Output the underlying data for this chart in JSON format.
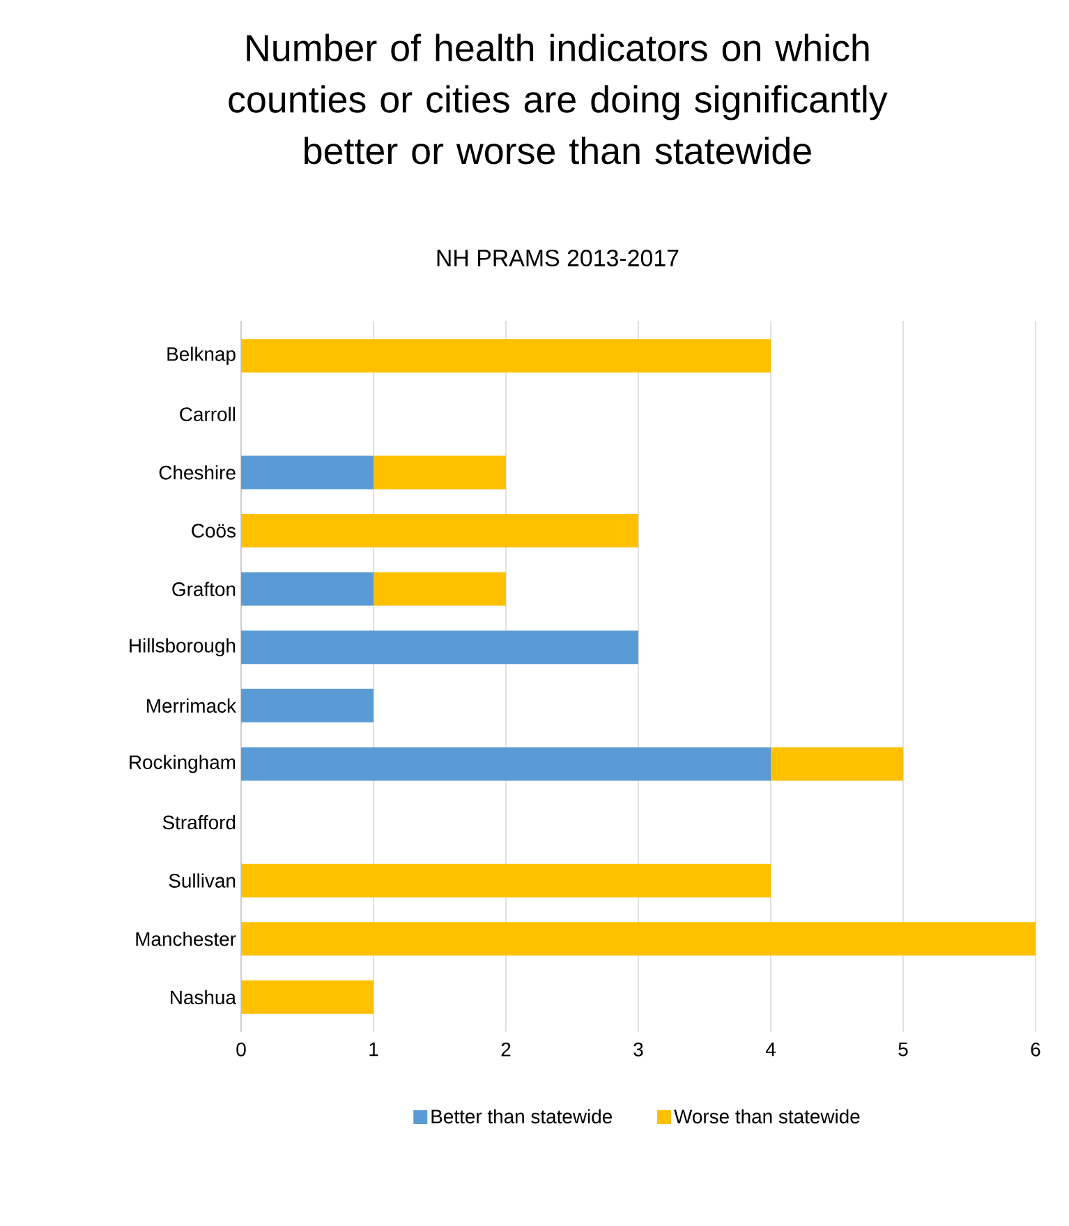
{
  "chart_data": {
    "type": "bar",
    "orientation": "horizontal",
    "stacked": true,
    "title": "Number of health indicators on which counties or cities are doing significantly better or worse than statewide",
    "subtitle": "NH PRAMS 2013-2017",
    "categories": [
      "Belknap",
      "Carroll",
      "Cheshire",
      "Coös",
      "Grafton",
      "Hillsborough",
      "Merrimack",
      "Rockingham",
      "Strafford",
      "Sullivan",
      "Manchester",
      "Nashua"
    ],
    "series": [
      {
        "name": "Better than statewide",
        "color": "#5b9bd5",
        "values": [
          0,
          0,
          1,
          0,
          1,
          3,
          1,
          4,
          0,
          0,
          0,
          0
        ]
      },
      {
        "name": "Worse than statewide",
        "color": "#ffc000",
        "values": [
          4,
          0,
          1,
          3,
          1,
          0,
          0,
          1,
          0,
          4,
          6,
          1
        ]
      }
    ],
    "xlim": [
      0,
      6
    ],
    "xticks": [
      0,
      1,
      2,
      3,
      4,
      5,
      6
    ],
    "grid": "x",
    "legend": "bottom"
  }
}
